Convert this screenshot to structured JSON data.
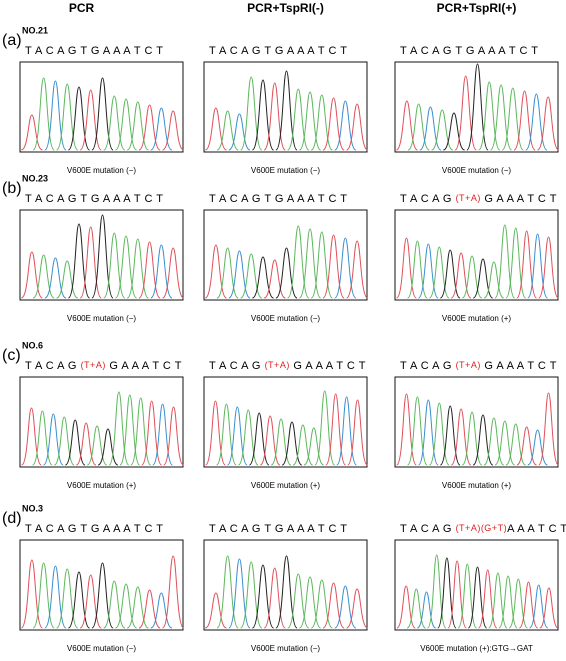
{
  "columns": [
    "PCR",
    "PCR+TspRI(-)",
    "PCR+TspRI(+)"
  ],
  "rows": [
    {
      "label": "(a)",
      "sample": "NO.21",
      "panels": [
        {
          "sequence": [
            {
              "text": "T A C A G T G A A A T C T"
            }
          ],
          "caption": "V600E mutation (−)"
        },
        {
          "sequence": [
            {
              "text": "T A C A G T G A A A T C T"
            }
          ],
          "caption": "V600E mutation (−)"
        },
        {
          "sequence": [
            {
              "text": "T A C A G T G A A A T C T"
            }
          ],
          "caption": "V600E mutation (−)"
        }
      ]
    },
    {
      "label": "(b)",
      "sample": "NO.23",
      "panels": [
        {
          "sequence": [
            {
              "text": "T A C A G T G A A A T C T"
            }
          ],
          "caption": "V600E mutation (−)"
        },
        {
          "sequence": [
            {
              "text": "T A C A G T G A A A T C T"
            }
          ],
          "caption": "V600E mutation (−)"
        },
        {
          "sequence": [
            {
              "text": "T A C A G "
            },
            {
              "text": "(T+A)",
              "red": true
            },
            {
              "text": " G A A A T C T"
            }
          ],
          "caption": "V600E mutation (+)"
        }
      ]
    },
    {
      "label": "(c)",
      "sample": "NO.6",
      "panels": [
        {
          "sequence": [
            {
              "text": "T A C A G "
            },
            {
              "text": "(T+A)",
              "red": true
            },
            {
              "text": " G A A A T C T"
            }
          ],
          "caption": "V600E mutation (+)"
        },
        {
          "sequence": [
            {
              "text": "T A C A G "
            },
            {
              "text": "(T+A)",
              "red": true
            },
            {
              "text": " G A A A T C T"
            }
          ],
          "caption": "V600E mutation (+)"
        },
        {
          "sequence": [
            {
              "text": "T A C A G "
            },
            {
              "text": "(T+A)",
              "red": true
            },
            {
              "text": " G A A A T C T"
            }
          ],
          "caption": "V600E mutation (+)"
        }
      ]
    },
    {
      "label": "(d)",
      "sample": "NO.3",
      "panels": [
        {
          "sequence": [
            {
              "text": "T A C A G T G A A A T C T"
            }
          ],
          "caption": "V600E mutation (−)"
        },
        {
          "sequence": [
            {
              "text": "T A C A G T G A A A T C T"
            }
          ],
          "caption": "V600E mutation (−)"
        },
        {
          "sequence": [
            {
              "text": "T A C A G "
            },
            {
              "text": "(T+A)(G+T)",
              "red": true
            },
            {
              "text": "A A A T C T"
            }
          ],
          "caption": "V600E mutation (+):GTG→GAT"
        }
      ]
    }
  ]
}
